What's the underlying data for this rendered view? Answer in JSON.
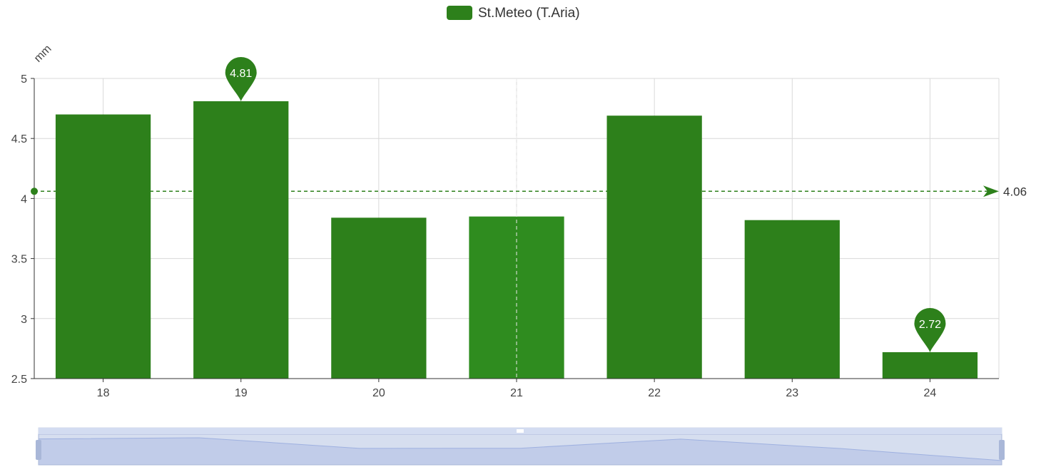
{
  "colors": {
    "bar": "#2d801b",
    "bar_highlight": "#2f8c1f",
    "axis": "#333333",
    "grid": "#d9d9d9",
    "zoom_fill": "#c9d3ec",
    "zoom_line": "#9fb0e0",
    "zoom_handle": "#a9b7d8"
  },
  "legend": {
    "label": "St.Meteo (T.Aria)",
    "icon": "rounded-rect-swatch"
  },
  "chart_data": {
    "type": "bar",
    "categories": [
      "18",
      "19",
      "20",
      "21",
      "22",
      "23",
      "24"
    ],
    "series": [
      {
        "name": "St.Meteo (T.Aria)",
        "values": [
          4.7,
          4.81,
          3.84,
          3.85,
          4.69,
          3.82,
          2.72
        ]
      }
    ],
    "ylabel": "mm",
    "ylim": [
      2.5,
      5
    ],
    "yticks": [
      "2.5",
      "3",
      "3.5",
      "4",
      "4.5",
      "5"
    ],
    "grid": true,
    "legend_position": "top-center",
    "highlighted_category": "21",
    "mark_points": [
      {
        "label": "4.81",
        "category": "19",
        "value": 4.81
      },
      {
        "label": "2.72",
        "category": "24",
        "value": 2.72
      }
    ],
    "mark_line": {
      "label": "4.06",
      "value": 4.06
    }
  },
  "zoom": {
    "icon": "grip-handle-icon",
    "start_percent": 0,
    "end_percent": 100,
    "preview_values": [
      4.7,
      4.81,
      3.84,
      3.85,
      4.69,
      3.82,
      2.72
    ]
  }
}
